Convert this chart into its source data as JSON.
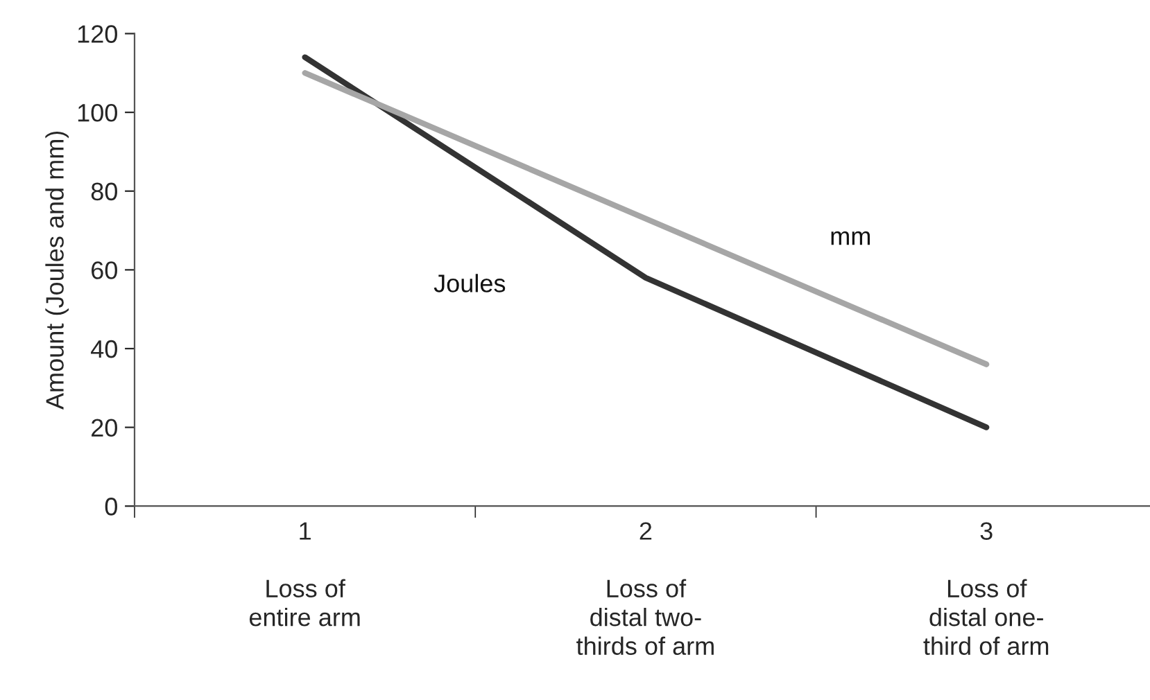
{
  "chart_data": {
    "type": "line",
    "ylabel": "Amount (Joules and mm)",
    "categories": [
      "1\n\nLoss of\nentire arm",
      "2\n\nLoss of\ndistal two-\nthirds of arm",
      "3\n\nLoss of\ndistal one-\nthird of arm"
    ],
    "series": [
      {
        "name": "Joules",
        "color": "#333333",
        "values": [
          114,
          58,
          20
        ]
      },
      {
        "name": "mm",
        "color": "#a6a6a6",
        "values": [
          110,
          73,
          36
        ]
      }
    ],
    "ylim": [
      0,
      120
    ],
    "yticks": [
      0,
      20,
      40,
      60,
      80,
      100,
      120
    ],
    "grid": false,
    "marker": "none",
    "line_style": "solid"
  }
}
